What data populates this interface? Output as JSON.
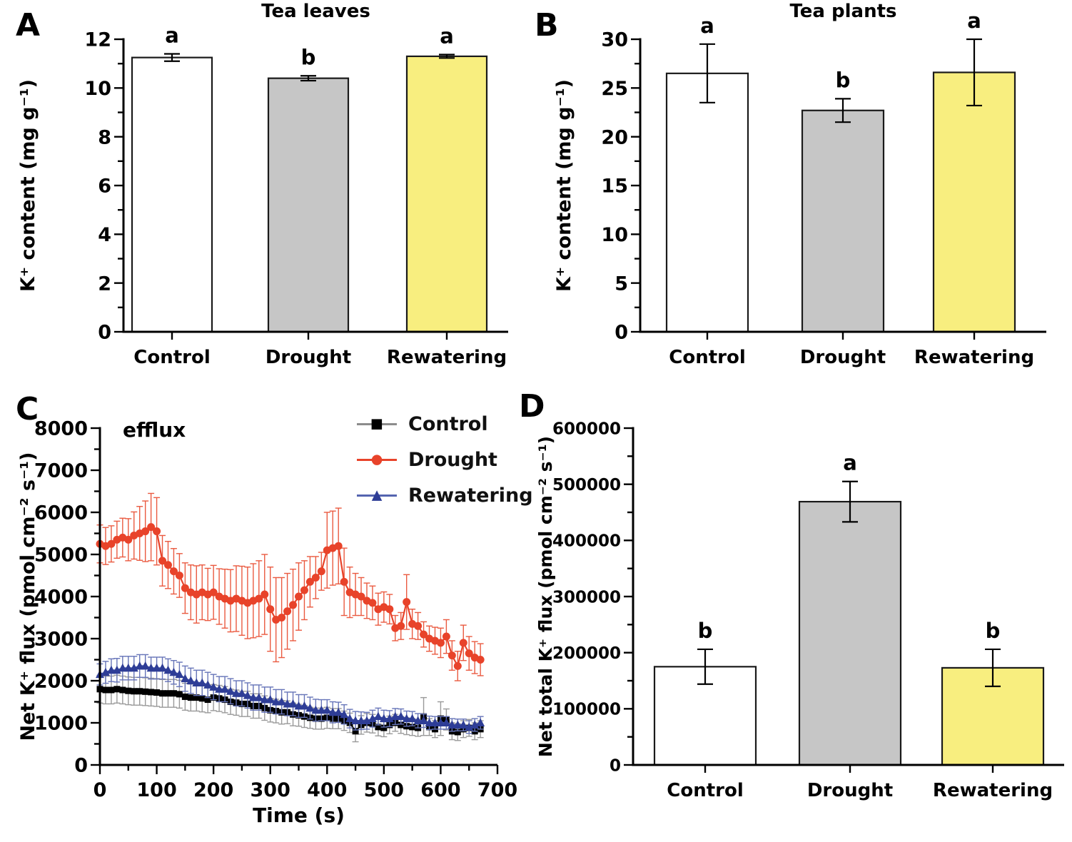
{
  "figure": {
    "background": "#ffffff"
  },
  "chart_data": [
    {
      "type": "bar",
      "panel": "A",
      "title": "Tea leaves",
      "ylabel": "K⁺ content (mg g⁻¹)",
      "xlabel": "",
      "categories": [
        "Control",
        "Drought",
        "Rewatering"
      ],
      "values": [
        11.25,
        10.4,
        11.3
      ],
      "errors": [
        0.15,
        0.1,
        0.07
      ],
      "sig_letters": [
        "a",
        "b",
        "a"
      ],
      "bar_colors": [
        "#ffffff",
        "#c6c6c6",
        "#f8ee7f"
      ],
      "bar_edge": "#1a1a1a",
      "ylim": [
        0,
        12
      ],
      "ytick_step": 2,
      "yminor_step": 1,
      "grid": false,
      "legend_position": "none"
    },
    {
      "type": "bar",
      "panel": "B",
      "title": "Tea plants",
      "ylabel": "K⁺ content (mg g⁻¹)",
      "xlabel": "",
      "categories": [
        "Control",
        "Drought",
        "Rewatering"
      ],
      "values": [
        26.5,
        22.7,
        26.6
      ],
      "errors": [
        3.0,
        1.2,
        3.4
      ],
      "sig_letters": [
        "a",
        "b",
        "a"
      ],
      "bar_colors": [
        "#ffffff",
        "#c6c6c6",
        "#f8ee7f"
      ],
      "bar_edge": "#1a1a1a",
      "ylim": [
        0,
        30
      ],
      "ytick_step": 5,
      "yminor_step": 2.5,
      "grid": false,
      "legend_position": "none"
    },
    {
      "type": "line",
      "panel": "C",
      "title": "",
      "annotation": "efflux",
      "ylabel": "Net K⁺ flux (pmol cm⁻² s⁻¹)",
      "xlabel": "Time (s)",
      "xlim": [
        0,
        700
      ],
      "xtick_step": 100,
      "xminor_step": 50,
      "ylim": [
        0,
        8000
      ],
      "ytick_step": 1000,
      "yminor_step": 500,
      "grid": false,
      "legend_position": "top-right",
      "legend": [
        {
          "label": "Control",
          "glyph": "■",
          "marker": "square",
          "marker_color": "#000000",
          "line_color": "#8c8c8c"
        },
        {
          "label": "Drought",
          "glyph": "●",
          "marker": "circle",
          "marker_color": "#e8432a",
          "line_color": "#e8432a"
        },
        {
          "label": "Rewatering",
          "glyph": "▲",
          "marker": "triangle",
          "marker_color": "#2e3d96",
          "line_color": "#5564b0"
        }
      ],
      "series": [
        {
          "name": "Control",
          "marker": "square",
          "marker_color": "#000000",
          "line_color": "#161616",
          "err_color": "#9a9a9a",
          "x": [
            0,
            10,
            20,
            30,
            40,
            50,
            60,
            70,
            80,
            90,
            100,
            110,
            120,
            130,
            140,
            150,
            160,
            170,
            180,
            190,
            200,
            210,
            220,
            230,
            240,
            250,
            260,
            270,
            280,
            290,
            300,
            310,
            320,
            330,
            340,
            350,
            360,
            370,
            380,
            390,
            400,
            410,
            420,
            430,
            440,
            450,
            460,
            470,
            480,
            490,
            500,
            510,
            520,
            530,
            540,
            550,
            560,
            570,
            580,
            590,
            600,
            610,
            620,
            630,
            640,
            650,
            660,
            670
          ],
          "y": [
            1800,
            1780,
            1780,
            1800,
            1780,
            1760,
            1750,
            1750,
            1740,
            1730,
            1720,
            1700,
            1700,
            1700,
            1680,
            1620,
            1600,
            1600,
            1580,
            1550,
            1600,
            1580,
            1550,
            1500,
            1480,
            1450,
            1450,
            1400,
            1400,
            1350,
            1300,
            1280,
            1250,
            1250,
            1200,
            1180,
            1150,
            1120,
            1100,
            1100,
            1120,
            1100,
            1100,
            1050,
            1000,
            800,
            950,
            1000,
            980,
            900,
            880,
            950,
            1000,
            950,
            920,
            900,
            880,
            1150,
            900,
            850,
            1100,
            1080,
            800,
            780,
            850,
            880,
            800,
            850
          ],
          "err": [
            330,
            330,
            330,
            330,
            330,
            330,
            330,
            330,
            330,
            330,
            330,
            330,
            330,
            330,
            330,
            320,
            320,
            320,
            320,
            310,
            310,
            310,
            310,
            300,
            300,
            300,
            300,
            290,
            290,
            290,
            280,
            280,
            280,
            270,
            270,
            260,
            260,
            250,
            250,
            250,
            250,
            240,
            240,
            230,
            230,
            250,
            220,
            220,
            220,
            210,
            210,
            210,
            200,
            200,
            200,
            200,
            200,
            450,
            200,
            200,
            400,
            250,
            200,
            200,
            200,
            200,
            200,
            200
          ]
        },
        {
          "name": "Drought",
          "marker": "circle",
          "marker_color": "#e8432a",
          "line_color": "#e8432a",
          "err_color": "#ea5a40",
          "x": [
            0,
            10,
            20,
            30,
            40,
            50,
            60,
            70,
            80,
            90,
            100,
            110,
            120,
            130,
            140,
            150,
            160,
            170,
            180,
            190,
            200,
            210,
            220,
            230,
            240,
            250,
            260,
            270,
            280,
            290,
            300,
            310,
            320,
            330,
            340,
            350,
            360,
            370,
            380,
            390,
            400,
            410,
            420,
            430,
            440,
            450,
            460,
            470,
            480,
            490,
            500,
            510,
            520,
            530,
            540,
            550,
            560,
            570,
            580,
            590,
            600,
            610,
            620,
            630,
            640,
            650,
            660,
            670
          ],
          "y": [
            5250,
            5200,
            5250,
            5350,
            5400,
            5350,
            5450,
            5500,
            5550,
            5650,
            5550,
            4850,
            4750,
            4600,
            4500,
            4200,
            4100,
            4050,
            4100,
            4050,
            4100,
            4000,
            3950,
            3900,
            3950,
            3900,
            3850,
            3900,
            3950,
            4050,
            3700,
            3450,
            3500,
            3650,
            3800,
            4000,
            4150,
            4350,
            4450,
            4600,
            5100,
            5150,
            5200,
            4350,
            4100,
            4050,
            4000,
            3900,
            3850,
            3700,
            3750,
            3700,
            3250,
            3300,
            3870,
            3350,
            3300,
            3100,
            3000,
            2950,
            2900,
            3050,
            2600,
            2350,
            2900,
            2650,
            2550,
            2500
          ],
          "err": [
            450,
            440,
            430,
            440,
            460,
            500,
            560,
            640,
            720,
            800,
            800,
            600,
            560,
            540,
            520,
            600,
            650,
            680,
            650,
            620,
            640,
            660,
            700,
            740,
            780,
            820,
            850,
            880,
            900,
            950,
            1000,
            1000,
            950,
            900,
            850,
            800,
            700,
            600,
            500,
            450,
            900,
            880,
            900,
            800,
            600,
            500,
            450,
            420,
            400,
            380,
            360,
            350,
            300,
            320,
            650,
            350,
            320,
            300,
            300,
            320,
            350,
            400,
            350,
            350,
            420,
            400,
            380,
            380
          ]
        },
        {
          "name": "Rewatering",
          "marker": "triangle",
          "marker_color": "#2e3d96",
          "line_color": "#3c4da6",
          "err_color": "#6674b8",
          "x": [
            0,
            10,
            20,
            30,
            40,
            50,
            60,
            70,
            80,
            90,
            100,
            110,
            120,
            130,
            140,
            150,
            160,
            170,
            180,
            190,
            200,
            210,
            220,
            230,
            240,
            250,
            260,
            270,
            280,
            290,
            300,
            310,
            320,
            330,
            340,
            350,
            360,
            370,
            380,
            390,
            400,
            410,
            420,
            430,
            440,
            450,
            460,
            470,
            480,
            490,
            500,
            510,
            520,
            530,
            540,
            550,
            560,
            570,
            580,
            590,
            600,
            610,
            620,
            630,
            640,
            650,
            660,
            670
          ],
          "y": [
            2150,
            2200,
            2250,
            2250,
            2300,
            2300,
            2300,
            2350,
            2350,
            2300,
            2300,
            2300,
            2250,
            2200,
            2150,
            2050,
            2000,
            1950,
            1950,
            1900,
            1850,
            1800,
            1800,
            1750,
            1700,
            1700,
            1650,
            1600,
            1600,
            1550,
            1550,
            1500,
            1500,
            1450,
            1450,
            1400,
            1400,
            1350,
            1300,
            1300,
            1300,
            1250,
            1250,
            1200,
            1100,
            1050,
            1050,
            1050,
            1100,
            1150,
            1100,
            1100,
            1150,
            1150,
            1100,
            1100,
            1050,
            1050,
            1000,
            1000,
            1000,
            1000,
            950,
            950,
            950,
            900,
            950,
            1000
          ],
          "err": [
            250,
            260,
            270,
            280,
            280,
            280,
            280,
            270,
            270,
            260,
            260,
            260,
            270,
            280,
            290,
            300,
            300,
            300,
            300,
            300,
            300,
            300,
            300,
            300,
            300,
            300,
            300,
            300,
            300,
            300,
            300,
            290,
            290,
            280,
            280,
            270,
            270,
            260,
            260,
            250,
            250,
            250,
            240,
            230,
            220,
            220,
            210,
            200,
            200,
            200,
            200,
            190,
            190,
            180,
            180,
            170,
            170,
            160,
            160,
            150,
            150,
            150,
            150,
            140,
            140,
            150,
            150,
            150
          ]
        }
      ]
    },
    {
      "type": "bar",
      "panel": "D",
      "title": "",
      "ylabel": "Net total K⁺ flux (pmol cm⁻² s⁻¹)",
      "xlabel": "",
      "categories": [
        "Control",
        "Drought",
        "Rewatering"
      ],
      "values": [
        175000,
        469000,
        173000
      ],
      "errors": [
        31000,
        36000,
        33000
      ],
      "sig_letters": [
        "b",
        "a",
        "b"
      ],
      "bar_colors": [
        "#ffffff",
        "#c6c6c6",
        "#f8ee7f"
      ],
      "bar_edge": "#1a1a1a",
      "ylim": [
        0,
        600000
      ],
      "ytick_step": 100000,
      "yminor_step": 50000,
      "grid": false,
      "legend_position": "none"
    }
  ]
}
